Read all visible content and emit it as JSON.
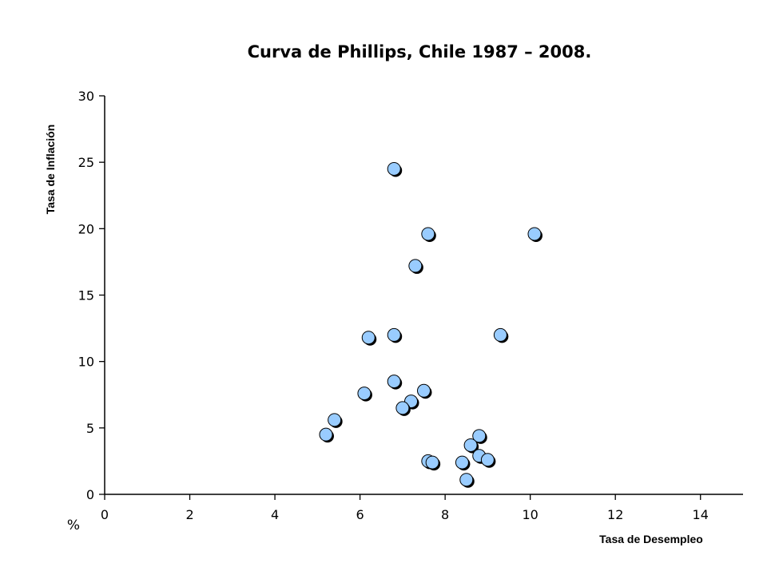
{
  "chart_data": {
    "type": "scatter",
    "title": "Curva de Phillips, Chile 1987 – 2008.",
    "xlabel": "Tasa de Desempleo",
    "ylabel": "Tasa de Inflación",
    "unit": "%",
    "xlim": [
      0,
      15
    ],
    "ylim": [
      0,
      30
    ],
    "xticks": [
      0,
      2,
      4,
      6,
      8,
      10,
      12,
      14
    ],
    "yticks": [
      0,
      5,
      10,
      15,
      20,
      25,
      30
    ],
    "grid": false,
    "legend": "none",
    "marker_color": "#99CCFF",
    "marker_edge_color": "#000000",
    "points": [
      {
        "x": 6.8,
        "y": 24.5
      },
      {
        "x": 7.6,
        "y": 19.6
      },
      {
        "x": 10.1,
        "y": 19.6
      },
      {
        "x": 7.3,
        "y": 17.2
      },
      {
        "x": 6.8,
        "y": 12.0
      },
      {
        "x": 9.3,
        "y": 12.0
      },
      {
        "x": 6.2,
        "y": 11.8
      },
      {
        "x": 6.8,
        "y": 8.5
      },
      {
        "x": 7.5,
        "y": 7.8
      },
      {
        "x": 6.1,
        "y": 7.6
      },
      {
        "x": 7.2,
        "y": 7.0
      },
      {
        "x": 7.0,
        "y": 6.5
      },
      {
        "x": 5.4,
        "y": 5.6
      },
      {
        "x": 5.2,
        "y": 4.5
      },
      {
        "x": 8.8,
        "y": 4.4
      },
      {
        "x": 8.6,
        "y": 3.7
      },
      {
        "x": 8.8,
        "y": 2.9
      },
      {
        "x": 9.0,
        "y": 2.6
      },
      {
        "x": 7.6,
        "y": 2.5
      },
      {
        "x": 7.7,
        "y": 2.4
      },
      {
        "x": 8.4,
        "y": 2.4
      },
      {
        "x": 8.5,
        "y": 1.1
      }
    ]
  }
}
